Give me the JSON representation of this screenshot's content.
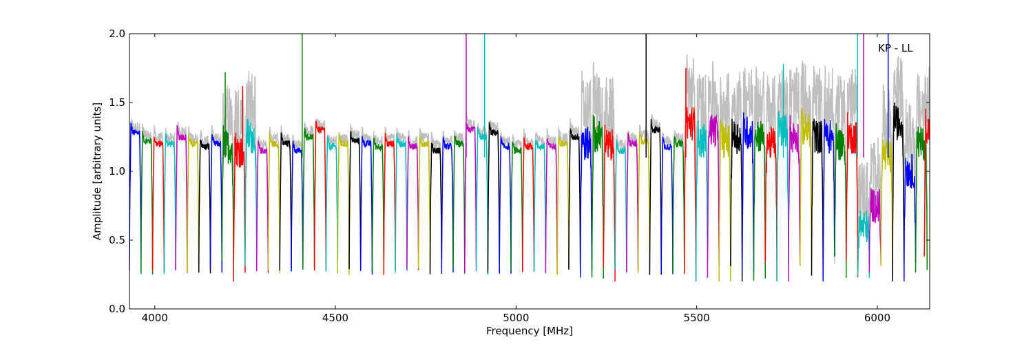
{
  "chart_data": {
    "type": "line",
    "title": "",
    "annotation": "KP - LL",
    "xlabel": "Frequency [MHz]",
    "ylabel": "Amplitude [arbitrary units]",
    "xlim": [
      3930,
      6145
    ],
    "ylim": [
      0.0,
      2.0
    ],
    "xticks": [
      4000,
      4500,
      5000,
      5500,
      6000
    ],
    "yticks": [
      0.0,
      0.5,
      1.0,
      1.5,
      2.0
    ],
    "xtick_labels": [
      "4000",
      "4500",
      "5000",
      "5500",
      "6000"
    ],
    "ytick_labels": [
      "0.0",
      "0.5",
      "1.0",
      "1.5",
      "2.0"
    ],
    "grid": false,
    "legend": "none",
    "background_series_color": "#bfbfbf",
    "colors": [
      "#0000ff",
      "#008000",
      "#ff0000",
      "#00bfbf",
      "#bf00bf",
      "#bfbf00",
      "#000000"
    ],
    "channel_width_mhz": 32,
    "channels": [
      {
        "start": 3930,
        "level": 1.28,
        "color": "#0000ff"
      },
      {
        "start": 3962,
        "level": 1.22,
        "color": "#008000"
      },
      {
        "start": 3994,
        "level": 1.2,
        "color": "#ff0000"
      },
      {
        "start": 4026,
        "level": 1.2,
        "color": "#00bfbf"
      },
      {
        "start": 4058,
        "level": 1.25,
        "color": "#bf00bf"
      },
      {
        "start": 4090,
        "level": 1.2,
        "color": "#bfbf00"
      },
      {
        "start": 4122,
        "level": 1.18,
        "color": "#000000"
      },
      {
        "start": 4154,
        "level": 1.2,
        "color": "#0000ff"
      },
      {
        "start": 4186,
        "level": 1.18,
        "color": "#008000"
      },
      {
        "start": 4218,
        "level": 1.15,
        "color": "#ff0000"
      },
      {
        "start": 4250,
        "level": 1.25,
        "color": "#00bfbf"
      },
      {
        "start": 4282,
        "level": 1.15,
        "color": "#bf00bf"
      },
      {
        "start": 4314,
        "level": 1.2,
        "color": "#bfbf00"
      },
      {
        "start": 4346,
        "level": 1.2,
        "color": "#000000"
      },
      {
        "start": 4378,
        "level": 1.15,
        "color": "#0000ff"
      },
      {
        "start": 4410,
        "level": 1.25,
        "color": "#008000"
      },
      {
        "start": 4442,
        "level": 1.3,
        "color": "#ff0000"
      },
      {
        "start": 4474,
        "level": 1.18,
        "color": "#00bfbf"
      },
      {
        "start": 4506,
        "level": 1.2,
        "color": "#bfbf00"
      },
      {
        "start": 4538,
        "level": 1.22,
        "color": "#000000"
      },
      {
        "start": 4570,
        "level": 1.2,
        "color": "#0000ff"
      },
      {
        "start": 4602,
        "level": 1.18,
        "color": "#008000"
      },
      {
        "start": 4634,
        "level": 1.2,
        "color": "#ff0000"
      },
      {
        "start": 4666,
        "level": 1.2,
        "color": "#00bfbf"
      },
      {
        "start": 4698,
        "level": 1.18,
        "color": "#bf00bf"
      },
      {
        "start": 4730,
        "level": 1.2,
        "color": "#bfbf00"
      },
      {
        "start": 4762,
        "level": 1.15,
        "color": "#000000"
      },
      {
        "start": 4794,
        "level": 1.18,
        "color": "#0000ff"
      },
      {
        "start": 4826,
        "level": 1.2,
        "color": "#008000"
      },
      {
        "start": 4858,
        "level": 1.3,
        "color": "#bf00bf"
      },
      {
        "start": 4890,
        "level": 1.25,
        "color": "#00bfbf"
      },
      {
        "start": 4922,
        "level": 1.28,
        "color": "#000000"
      },
      {
        "start": 4954,
        "level": 1.18,
        "color": "#0000ff"
      },
      {
        "start": 4986,
        "level": 1.15,
        "color": "#008000"
      },
      {
        "start": 5018,
        "level": 1.18,
        "color": "#ff0000"
      },
      {
        "start": 5050,
        "level": 1.18,
        "color": "#00bfbf"
      },
      {
        "start": 5082,
        "level": 1.18,
        "color": "#bf00bf"
      },
      {
        "start": 5114,
        "level": 1.2,
        "color": "#bfbf00"
      },
      {
        "start": 5146,
        "level": 1.25,
        "color": "#000000"
      },
      {
        "start": 5178,
        "level": 1.2,
        "color": "#0000ff"
      },
      {
        "start": 5210,
        "level": 1.25,
        "color": "#008000"
      },
      {
        "start": 5242,
        "level": 1.18,
        "color": "#ff0000"
      },
      {
        "start": 5274,
        "level": 1.15,
        "color": "#00bfbf"
      },
      {
        "start": 5306,
        "level": 1.2,
        "color": "#bf00bf"
      },
      {
        "start": 5338,
        "level": 1.22,
        "color": "#bfbf00"
      },
      {
        "start": 5370,
        "level": 1.3,
        "color": "#000000"
      },
      {
        "start": 5402,
        "level": 1.18,
        "color": "#0000ff"
      },
      {
        "start": 5434,
        "level": 1.2,
        "color": "#008000"
      },
      {
        "start": 5466,
        "level": 1.35,
        "color": "#ff0000"
      },
      {
        "start": 5498,
        "level": 1.22,
        "color": "#00bfbf"
      },
      {
        "start": 5530,
        "level": 1.3,
        "color": "#bf00bf"
      },
      {
        "start": 5562,
        "level": 1.22,
        "color": "#bfbf00"
      },
      {
        "start": 5594,
        "level": 1.25,
        "color": "#000000"
      },
      {
        "start": 5626,
        "level": 1.28,
        "color": "#0000ff"
      },
      {
        "start": 5658,
        "level": 1.25,
        "color": "#008000"
      },
      {
        "start": 5690,
        "level": 1.2,
        "color": "#ff0000"
      },
      {
        "start": 5722,
        "level": 1.3,
        "color": "#00bfbf"
      },
      {
        "start": 5754,
        "level": 1.25,
        "color": "#bf00bf"
      },
      {
        "start": 5786,
        "level": 1.3,
        "color": "#bfbf00"
      },
      {
        "start": 5818,
        "level": 1.25,
        "color": "#000000"
      },
      {
        "start": 5850,
        "level": 1.25,
        "color": "#0000ff"
      },
      {
        "start": 5882,
        "level": 1.2,
        "color": "#008000"
      },
      {
        "start": 5914,
        "level": 1.25,
        "color": "#ff0000"
      },
      {
        "start": 5946,
        "level": 0.6,
        "color": "#00bfbf"
      },
      {
        "start": 5978,
        "level": 0.75,
        "color": "#bf00bf"
      },
      {
        "start": 6010,
        "level": 1.1,
        "color": "#bfbf00"
      },
      {
        "start": 6042,
        "level": 1.35,
        "color": "#000000"
      },
      {
        "start": 6074,
        "level": 1.0,
        "color": "#0000ff"
      },
      {
        "start": 6106,
        "level": 1.2,
        "color": "#008000"
      },
      {
        "start": 6130,
        "level": 1.3,
        "color": "#ff0000"
      }
    ]
  }
}
